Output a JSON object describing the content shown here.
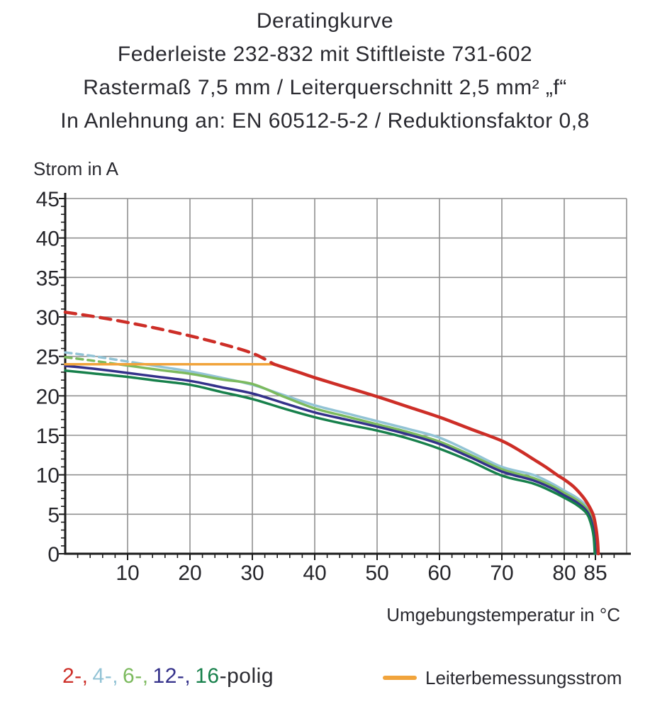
{
  "title_block": {
    "lines": [
      "Deratingkurve",
      "Federleiste 232-832 mit Stiftleiste 731-602",
      "Rastermaß 7,5 mm / Leiterquerschnitt 2,5 mm² „f“",
      "In Anlehnung an: EN 60512-5-2 / Reduktionsfaktor 0,8"
    ]
  },
  "chart_data": {
    "type": "line",
    "title": "Deratingkurve",
    "ylabel": "Strom in A",
    "xlabel": "Umgebungstemperatur in °C",
    "xlim": [
      0,
      90
    ],
    "ylim": [
      0,
      45
    ],
    "x_tick_labels": [
      10,
      20,
      30,
      40,
      50,
      60,
      70,
      80,
      85
    ],
    "x_grid": [
      10,
      20,
      30,
      40,
      50,
      60,
      70,
      80
    ],
    "y_ticks": [
      0,
      5,
      10,
      15,
      20,
      25,
      30,
      35,
      40,
      45
    ],
    "x_minor_step": 2,
    "y_minor_step": 1,
    "grid": true,
    "legend_position": "bottom",
    "series": [
      {
        "name": "4-polig",
        "color": "#92c3d5",
        "width": 3.5,
        "dashed_points": [
          [
            0,
            25.5
          ],
          [
            4,
            25.1
          ],
          [
            8,
            24.6
          ],
          [
            12,
            24.1
          ]
        ],
        "solid_points": [
          [
            12,
            24.1
          ],
          [
            16,
            23.6
          ],
          [
            20,
            23.1
          ],
          [
            25,
            22.3
          ],
          [
            30,
            21.4
          ],
          [
            35,
            20.1
          ],
          [
            40,
            18.8
          ],
          [
            45,
            17.8
          ],
          [
            50,
            16.8
          ],
          [
            55,
            15.8
          ],
          [
            60,
            14.7
          ],
          [
            65,
            12.9
          ],
          [
            70,
            11.0
          ],
          [
            75,
            10.0
          ],
          [
            78,
            8.9
          ],
          [
            80,
            8.0
          ],
          [
            82,
            7.1
          ],
          [
            83.5,
            6.1
          ],
          [
            84.4,
            4.9
          ],
          [
            85,
            3.0
          ],
          [
            85.2,
            1.2
          ],
          [
            85.25,
            0
          ]
        ]
      },
      {
        "name": "6-polig",
        "color": "#7cba5e",
        "width": 3.5,
        "dashed_points": [
          [
            0,
            24.9
          ],
          [
            4,
            24.5
          ],
          [
            8.5,
            24.0
          ]
        ],
        "solid_points": [
          [
            8.5,
            24.0
          ],
          [
            15,
            23.3
          ],
          [
            20,
            22.8
          ],
          [
            25,
            22.1
          ],
          [
            30,
            21.5
          ],
          [
            35,
            19.9
          ],
          [
            40,
            18.4
          ],
          [
            45,
            17.4
          ],
          [
            50,
            16.4
          ],
          [
            55,
            15.4
          ],
          [
            60,
            14.2
          ],
          [
            65,
            12.5
          ],
          [
            70,
            10.7
          ],
          [
            75,
            9.6
          ],
          [
            78,
            8.6
          ],
          [
            80,
            7.7
          ],
          [
            82,
            6.8
          ],
          [
            83.5,
            5.8
          ],
          [
            84.4,
            4.6
          ],
          [
            84.9,
            2.7
          ],
          [
            85.1,
            0
          ]
        ]
      },
      {
        "name": "12-polig",
        "color": "#34318a",
        "width": 3.5,
        "solid_points": [
          [
            0,
            23.8
          ],
          [
            5,
            23.4
          ],
          [
            10,
            22.9
          ],
          [
            15,
            22.4
          ],
          [
            20,
            21.9
          ],
          [
            25,
            21.1
          ],
          [
            30,
            20.3
          ],
          [
            35,
            19.1
          ],
          [
            40,
            17.9
          ],
          [
            45,
            17.0
          ],
          [
            50,
            16.1
          ],
          [
            55,
            15.1
          ],
          [
            60,
            13.9
          ],
          [
            65,
            12.2
          ],
          [
            70,
            10.4
          ],
          [
            75,
            9.3
          ],
          [
            78,
            8.3
          ],
          [
            80,
            7.4
          ],
          [
            82,
            6.5
          ],
          [
            83.5,
            5.5
          ],
          [
            84.3,
            4.3
          ],
          [
            84.8,
            2.4
          ],
          [
            85.0,
            0
          ]
        ]
      },
      {
        "name": "16-polig",
        "color": "#17804b",
        "width": 3.5,
        "solid_points": [
          [
            0,
            23.2
          ],
          [
            5,
            22.8
          ],
          [
            10,
            22.4
          ],
          [
            15,
            21.9
          ],
          [
            20,
            21.4
          ],
          [
            25,
            20.5
          ],
          [
            30,
            19.6
          ],
          [
            35,
            18.4
          ],
          [
            40,
            17.3
          ],
          [
            45,
            16.4
          ],
          [
            50,
            15.6
          ],
          [
            55,
            14.6
          ],
          [
            60,
            13.3
          ],
          [
            65,
            11.7
          ],
          [
            70,
            9.9
          ],
          [
            75,
            8.9
          ],
          [
            78,
            7.9
          ],
          [
            80,
            7.1
          ],
          [
            82,
            6.2
          ],
          [
            83.5,
            5.2
          ],
          [
            84.2,
            4.0
          ],
          [
            84.7,
            2.2
          ],
          [
            84.9,
            0
          ]
        ]
      },
      {
        "name": "Leiterbemessungsstrom",
        "color": "#f1a43c",
        "width": 3.5,
        "solid_points": [
          [
            0,
            24.0
          ],
          [
            33.5,
            24.0
          ]
        ]
      },
      {
        "name": "2-polig",
        "color": "#cd2e27",
        "width": 4.5,
        "dashed_points": [
          [
            0,
            30.6
          ],
          [
            5,
            30.0
          ],
          [
            10,
            29.3
          ],
          [
            15,
            28.5
          ],
          [
            20,
            27.6
          ],
          [
            25,
            26.6
          ],
          [
            30,
            25.4
          ],
          [
            33.5,
            24.0
          ]
        ],
        "solid_points": [
          [
            33.5,
            24.0
          ],
          [
            37,
            23.1
          ],
          [
            40,
            22.3
          ],
          [
            45,
            21.1
          ],
          [
            50,
            19.9
          ],
          [
            55,
            18.6
          ],
          [
            60,
            17.3
          ],
          [
            65,
            15.8
          ],
          [
            70,
            14.3
          ],
          [
            73,
            13.0
          ],
          [
            75,
            12.0
          ],
          [
            77,
            11.0
          ],
          [
            79,
            9.9
          ],
          [
            80,
            9.4
          ],
          [
            81.5,
            8.5
          ],
          [
            83,
            7.2
          ],
          [
            84,
            6.0
          ],
          [
            84.7,
            4.8
          ],
          [
            85.1,
            3.2
          ],
          [
            85.35,
            1.5
          ],
          [
            85.45,
            0
          ]
        ]
      }
    ]
  },
  "legend": {
    "pole_items": [
      {
        "label": "2-,",
        "color": "#cd2e27"
      },
      {
        "label": "4-,",
        "color": "#92c3d5"
      },
      {
        "label": "6-,",
        "color": "#7cba5e"
      },
      {
        "label": "12-,",
        "color": "#34318a"
      },
      {
        "label": "16",
        "color": "#17804b"
      }
    ],
    "pole_suffix": "-polig",
    "rated_current_label": "Leiterbemessungsstrom",
    "rated_current_color": "#f1a43c"
  },
  "colors": {
    "grid": "#909090",
    "axis": "#1c1c1c",
    "text": "#26262b"
  }
}
